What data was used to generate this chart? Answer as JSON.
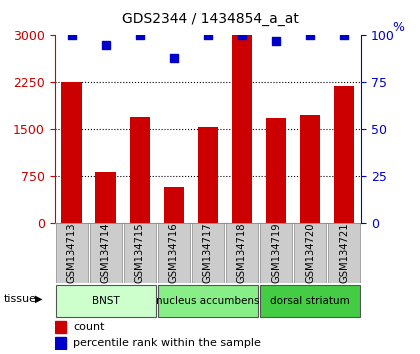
{
  "title": "GDS2344 / 1434854_a_at",
  "samples": [
    "GSM134713",
    "GSM134714",
    "GSM134715",
    "GSM134716",
    "GSM134717",
    "GSM134718",
    "GSM134719",
    "GSM134720",
    "GSM134721"
  ],
  "counts": [
    2250,
    810,
    1700,
    580,
    1530,
    3000,
    1680,
    1730,
    2195
  ],
  "percentiles": [
    100,
    95,
    100,
    88,
    100,
    100,
    97,
    100,
    100
  ],
  "ylim_left": [
    0,
    3000
  ],
  "ylim_right": [
    0,
    100
  ],
  "yticks_left": [
    0,
    750,
    1500,
    2250,
    3000
  ],
  "yticks_right": [
    0,
    25,
    50,
    75,
    100
  ],
  "bar_color": "#cc0000",
  "dot_color": "#0000cc",
  "tissues": [
    {
      "label": "BNST",
      "start": 0,
      "end": 3,
      "color": "#ccffcc"
    },
    {
      "label": "nucleus accumbens",
      "start": 3,
      "end": 6,
      "color": "#88ee88"
    },
    {
      "label": "dorsal striatum",
      "start": 6,
      "end": 9,
      "color": "#44cc44"
    }
  ],
  "tissue_label": "tissue",
  "legend_count": "count",
  "legend_pct": "percentile rank within the sample",
  "bar_width": 0.6,
  "dot_size": 40
}
